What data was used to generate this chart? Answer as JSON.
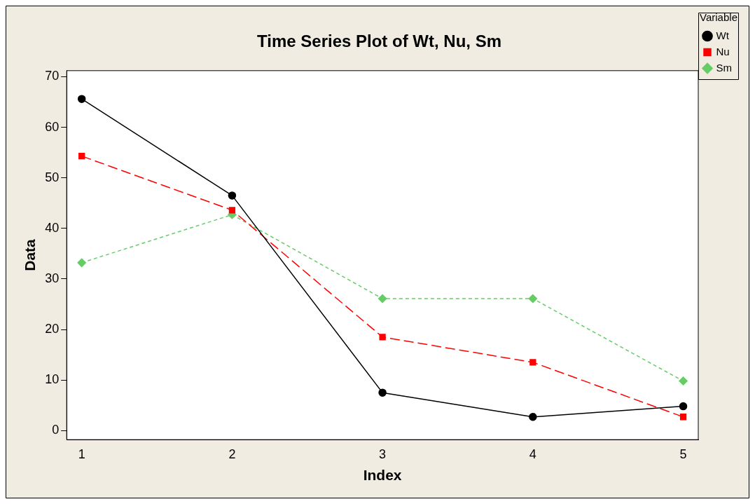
{
  "chart_data": {
    "type": "line",
    "title": "Time Series Plot of Wt, Nu, Sm",
    "xlabel": "Index",
    "ylabel": "Data",
    "legend_title": "Variable",
    "legend": "right",
    "x": [
      1,
      2,
      3,
      4,
      5
    ],
    "xlim": [
      0.9,
      5.1
    ],
    "xticks": [
      1,
      2,
      3,
      4,
      5
    ],
    "ylim": [
      -1.8,
      71.2
    ],
    "yticks": [
      0,
      10,
      20,
      30,
      40,
      50,
      60,
      70
    ],
    "grid": false,
    "series": [
      {
        "name": "Wt",
        "color": "#000000",
        "marker": "circle",
        "line_style": "solid",
        "values": [
          65.6,
          46.5,
          7.5,
          2.7,
          4.8
        ]
      },
      {
        "name": "Nu",
        "color": "#ff0000",
        "marker": "square",
        "line_style": "dashed",
        "values": [
          54.3,
          43.6,
          18.5,
          13.5,
          2.7
        ]
      },
      {
        "name": "Sm",
        "color": "#66cc66",
        "marker": "diamond",
        "line_style": "dotted",
        "values": [
          33.2,
          42.7,
          26.1,
          26.1,
          9.8
        ]
      }
    ]
  }
}
